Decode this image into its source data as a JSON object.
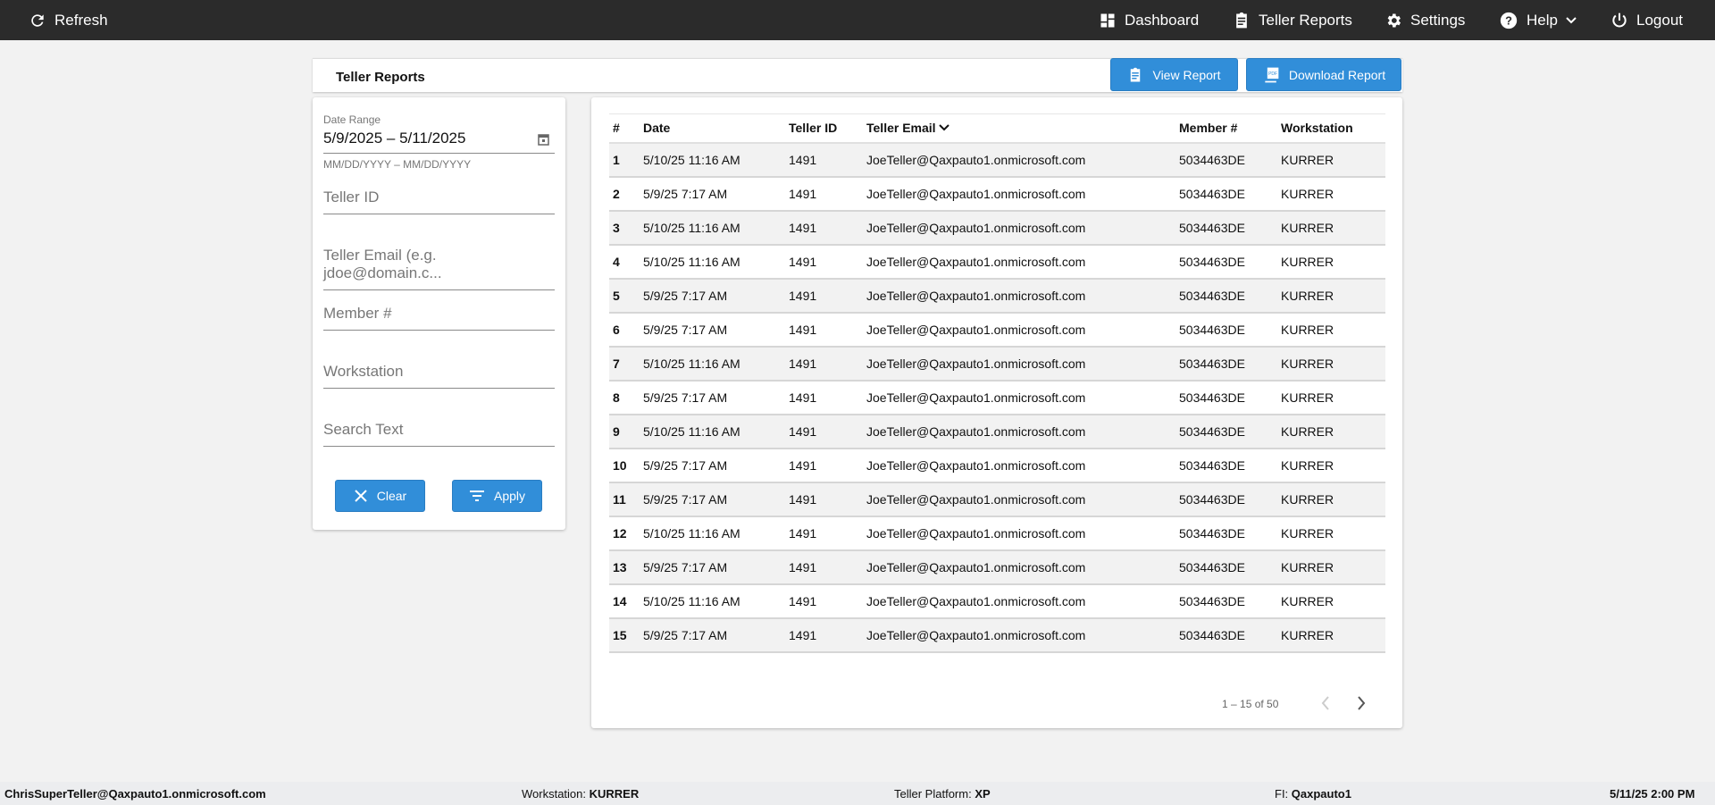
{
  "topbar": {
    "refresh": "Refresh",
    "dashboard": "Dashboard",
    "teller_reports": "Teller Reports",
    "settings": "Settings",
    "help": "Help",
    "logout": "Logout"
  },
  "header": {
    "title": "Teller Reports",
    "view_report": "View Report",
    "download_report": "Download Report"
  },
  "filters": {
    "date_range_label": "Date Range",
    "date_range_value": "5/9/2025 – 5/11/2025",
    "date_hint": "MM/DD/YYYY – MM/DD/YYYY",
    "teller_id": "Teller ID",
    "teller_email": "Teller Email (e.g. jdoe@domain.c...",
    "member": "Member #",
    "workstation": "Workstation",
    "search_text": "Search Text",
    "clear": "Clear",
    "apply": "Apply"
  },
  "table": {
    "columns": [
      "#",
      "Date",
      "Teller ID",
      "Teller Email",
      "Member #",
      "Workstation"
    ],
    "rows": [
      [
        "1",
        "5/10/25 11:16 AM",
        "1491",
        "JoeTeller@Qaxpauto1.onmicrosoft.com",
        "5034463DE",
        "KURRER"
      ],
      [
        "2",
        "5/9/25 7:17 AM",
        "1491",
        "JoeTeller@Qaxpauto1.onmicrosoft.com",
        "5034463DE",
        "KURRER"
      ],
      [
        "3",
        "5/10/25 11:16 AM",
        "1491",
        "JoeTeller@Qaxpauto1.onmicrosoft.com",
        "5034463DE",
        "KURRER"
      ],
      [
        "4",
        "5/10/25 11:16 AM",
        "1491",
        "JoeTeller@Qaxpauto1.onmicrosoft.com",
        "5034463DE",
        "KURRER"
      ],
      [
        "5",
        "5/9/25 7:17 AM",
        "1491",
        "JoeTeller@Qaxpauto1.onmicrosoft.com",
        "5034463DE",
        "KURRER"
      ],
      [
        "6",
        "5/9/25 7:17 AM",
        "1491",
        "JoeTeller@Qaxpauto1.onmicrosoft.com",
        "5034463DE",
        "KURRER"
      ],
      [
        "7",
        "5/10/25 11:16 AM",
        "1491",
        "JoeTeller@Qaxpauto1.onmicrosoft.com",
        "5034463DE",
        "KURRER"
      ],
      [
        "8",
        "5/9/25 7:17 AM",
        "1491",
        "JoeTeller@Qaxpauto1.onmicrosoft.com",
        "5034463DE",
        "KURRER"
      ],
      [
        "9",
        "5/10/25 11:16 AM",
        "1491",
        "JoeTeller@Qaxpauto1.onmicrosoft.com",
        "5034463DE",
        "KURRER"
      ],
      [
        "10",
        "5/9/25 7:17 AM",
        "1491",
        "JoeTeller@Qaxpauto1.onmicrosoft.com",
        "5034463DE",
        "KURRER"
      ],
      [
        "11",
        "5/9/25 7:17 AM",
        "1491",
        "JoeTeller@Qaxpauto1.onmicrosoft.com",
        "5034463DE",
        "KURRER"
      ],
      [
        "12",
        "5/10/25 11:16 AM",
        "1491",
        "JoeTeller@Qaxpauto1.onmicrosoft.com",
        "5034463DE",
        "KURRER"
      ],
      [
        "13",
        "5/9/25 7:17 AM",
        "1491",
        "JoeTeller@Qaxpauto1.onmicrosoft.com",
        "5034463DE",
        "KURRER"
      ],
      [
        "14",
        "5/10/25 11:16 AM",
        "1491",
        "JoeTeller@Qaxpauto1.onmicrosoft.com",
        "5034463DE",
        "KURRER"
      ],
      [
        "15",
        "5/9/25 7:17 AM",
        "1491",
        "JoeTeller@Qaxpauto1.onmicrosoft.com",
        "5034463DE",
        "KURRER"
      ]
    ]
  },
  "pagination": {
    "range": "1 – 15 of 50"
  },
  "footer": {
    "user": "ChrisSuperTeller@Qaxpauto1.onmicrosoft.com",
    "workstation_label": "Workstation: ",
    "workstation": "KURRER",
    "platform_label": "Teller Platform: ",
    "platform": "XP",
    "fi_label": "FI: ",
    "fi": "Qaxpauto1",
    "datetime": "5/11/25 2:00 PM"
  },
  "colors": {
    "topbar": "#2b2b2b",
    "accent": "#318ed9"
  }
}
